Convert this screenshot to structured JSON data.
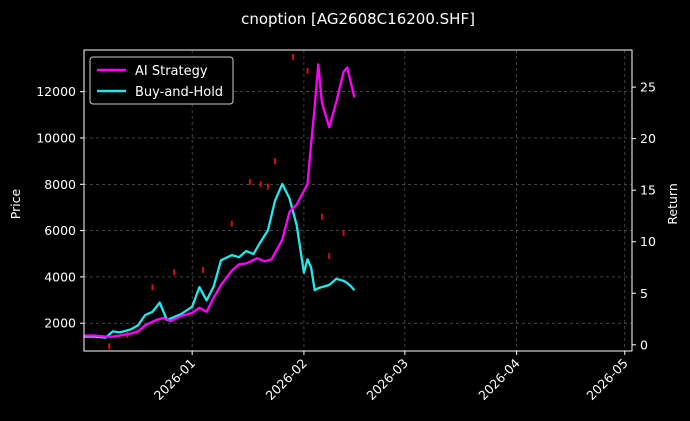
{
  "chart_data": {
    "type": "line",
    "title": "cnoption [AG2608C16200.SHF]",
    "xlabel": "",
    "ylabel": "Price",
    "y2label": "Return",
    "x_ticks": [
      "2026-01",
      "2026-02",
      "2026-03",
      "2026-04",
      "2026-05"
    ],
    "y_ticks": [
      2000,
      4000,
      6000,
      8000,
      10000,
      12000
    ],
    "y2_ticks": [
      0,
      5,
      10,
      15,
      20,
      25
    ],
    "xlim": [
      "2025-12-02",
      "2026-05-03"
    ],
    "ylim": [
      800,
      13800
    ],
    "y2lim": [
      -0.6,
      28.6
    ],
    "grid": true,
    "legend_position": "top-left",
    "colors": {
      "background": "#000000",
      "text": "#ffffff",
      "grid": "#6b6b6b",
      "ai_strategy": "#ff00ff",
      "buy_and_hold": "#22e8ee",
      "candles": "#d01010"
    },
    "series": [
      {
        "name": "AI Strategy",
        "axis": "right",
        "color": "#ff00ff",
        "x": [
          "2025-12-02",
          "2025-12-05",
          "2025-12-08",
          "2025-12-10",
          "2025-12-12",
          "2025-12-15",
          "2025-12-17",
          "2025-12-19",
          "2025-12-22",
          "2025-12-24",
          "2025-12-26",
          "2025-12-29",
          "2026-01-01",
          "2026-01-03",
          "2026-01-05",
          "2026-01-07",
          "2026-01-09",
          "2026-01-12",
          "2026-01-14",
          "2026-01-16",
          "2026-01-19",
          "2026-01-21",
          "2026-01-23",
          "2026-01-26",
          "2026-01-28",
          "2026-01-30",
          "2026-02-02",
          "2026-02-03",
          "2026-02-04",
          "2026-02-05",
          "2026-02-06",
          "2026-02-08",
          "2026-02-10",
          "2026-02-12",
          "2026-02-13",
          "2026-02-15"
        ],
        "y": [
          0.9,
          0.9,
          0.8,
          0.8,
          0.9,
          1.1,
          1.3,
          1.9,
          2.4,
          2.6,
          2.3,
          2.8,
          3.1,
          3.6,
          3.2,
          4.6,
          5.8,
          7.2,
          7.8,
          7.9,
          8.4,
          8.1,
          8.3,
          10.2,
          12.9,
          13.6,
          15.6,
          19.5,
          23.1,
          27.2,
          23.5,
          21.1,
          23.6,
          26.5,
          26.9,
          24.0
        ]
      },
      {
        "name": "Buy-and-Hold",
        "axis": "right",
        "color": "#22e8ee",
        "x": [
          "2025-12-02",
          "2025-12-05",
          "2025-12-08",
          "2025-12-10",
          "2025-12-12",
          "2025-12-15",
          "2025-12-17",
          "2025-12-19",
          "2025-12-21",
          "2025-12-23",
          "2025-12-25",
          "2025-12-27",
          "2025-12-29",
          "2026-01-01",
          "2026-01-03",
          "2026-01-05",
          "2026-01-07",
          "2026-01-09",
          "2026-01-12",
          "2026-01-14",
          "2026-01-16",
          "2026-01-18",
          "2026-01-20",
          "2026-01-22",
          "2026-01-24",
          "2026-01-26",
          "2026-01-28",
          "2026-01-30",
          "2026-02-01",
          "2026-02-02",
          "2026-02-03",
          "2026-02-04",
          "2026-02-05",
          "2026-02-06",
          "2026-02-08",
          "2026-02-10",
          "2026-02-12",
          "2026-02-13",
          "2026-02-14",
          "2026-02-15"
        ],
        "y": [
          0.8,
          0.8,
          0.7,
          1.3,
          1.2,
          1.5,
          1.9,
          2.9,
          3.2,
          4.1,
          2.4,
          2.7,
          3.0,
          3.7,
          5.6,
          4.3,
          5.7,
          8.2,
          8.7,
          8.5,
          9.1,
          8.8,
          10.0,
          11.1,
          14.0,
          15.6,
          14.2,
          11.6,
          7.0,
          8.3,
          7.5,
          5.3,
          5.5,
          5.6,
          5.8,
          6.4,
          6.2,
          6.0,
          5.7,
          5.3
        ]
      },
      {
        "name": "Price",
        "axis": "left",
        "type": "candlestick",
        "color": "#d01010",
        "x": [
          "2025-12-09",
          "2025-12-14",
          "2025-12-21",
          "2025-12-27",
          "2026-01-04",
          "2026-01-12",
          "2026-01-17",
          "2026-01-20",
          "2026-01-22",
          "2026-01-24",
          "2026-01-29",
          "2026-02-02",
          "2026-02-06",
          "2026-02-08",
          "2026-02-12"
        ],
        "y": [
          1000,
          1500,
          3550,
          4200,
          4300,
          6300,
          8100,
          8000,
          7900,
          9000,
          13500,
          12900,
          6600,
          4900,
          5900
        ]
      }
    ]
  }
}
